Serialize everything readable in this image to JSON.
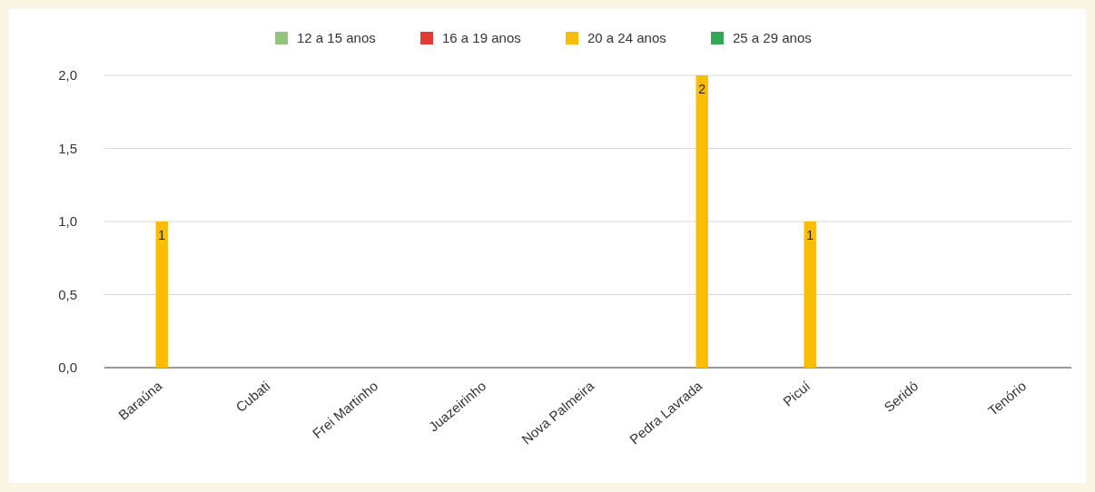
{
  "chart_data": {
    "type": "bar",
    "categories": [
      "Baraúna",
      "Cubati",
      "Frei Martinho",
      "Juazeirinho",
      "Nova Palmeira",
      "Pedra Lavrada",
      "Picuí",
      "Seridó",
      "Tenório"
    ],
    "series": [
      {
        "name": "12 a 15 anos",
        "color": "#93c47d",
        "values": [
          0,
          0,
          0,
          0,
          0,
          0,
          0,
          0,
          0
        ]
      },
      {
        "name": "16 a 19 anos",
        "color": "#e53935",
        "values": [
          0,
          0,
          0,
          0,
          0,
          0,
          0,
          0,
          0
        ]
      },
      {
        "name": "20 a 24 anos",
        "color": "#fbbc04",
        "values": [
          1,
          0,
          0,
          0,
          0,
          2,
          1,
          0,
          0
        ],
        "value_labels": [
          "1",
          null,
          null,
          null,
          null,
          "2",
          "1",
          null,
          null
        ]
      },
      {
        "name": "25 a 29 anos",
        "color": "#34a853",
        "values": [
          0,
          0,
          0,
          0,
          0,
          0,
          0,
          0,
          0
        ]
      }
    ],
    "ylim": [
      0,
      2
    ],
    "yticks": [
      {
        "value": 0,
        "label": "0,0"
      },
      {
        "value": 0.5,
        "label": "0,5"
      },
      {
        "value": 1,
        "label": "1,0"
      },
      {
        "value": 1.5,
        "label": "1,5"
      },
      {
        "value": 2,
        "label": "2,0"
      }
    ],
    "grid": "y",
    "legend": "top"
  }
}
